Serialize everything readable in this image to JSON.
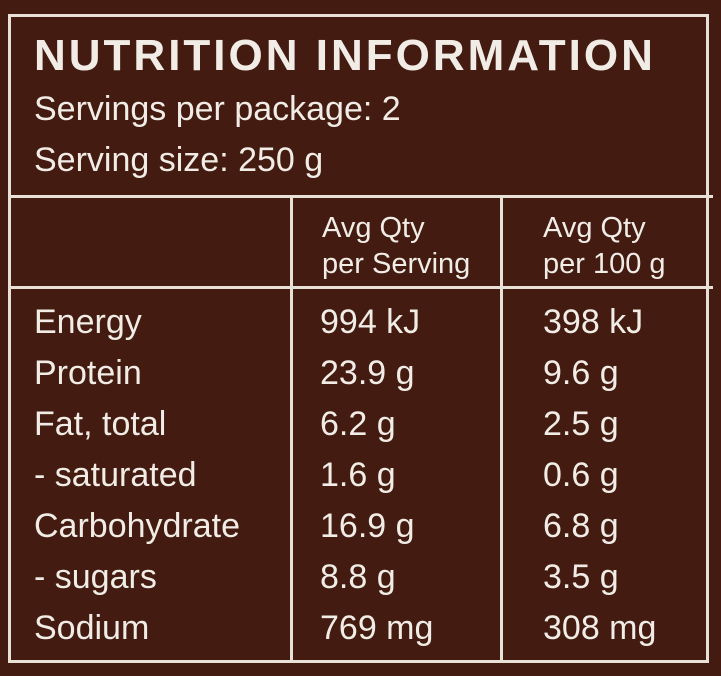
{
  "panel": {
    "title": "NUTRITION INFORMATION",
    "servings_per_package": "Servings per package: 2",
    "serving_size": "Serving size: 250 g",
    "colors": {
      "background": "#431b10",
      "text": "#f1ece6",
      "rules": "#e7e1d8"
    }
  },
  "table": {
    "headers": [
      {
        "line1": "",
        "line2": ""
      },
      {
        "line1": "Avg Qty",
        "line2": "per Serving"
      },
      {
        "line1": "Avg Qty",
        "line2": "per 100 g"
      }
    ],
    "rows": [
      {
        "nutrient": "Energy",
        "per_serving": "994 kJ",
        "per_100g": "398 kJ"
      },
      {
        "nutrient": "Protein",
        "per_serving": "23.9 g",
        "per_100g": "9.6 g"
      },
      {
        "nutrient": "Fat, total",
        "per_serving": "6.2 g",
        "per_100g": "2.5 g"
      },
      {
        "nutrient": "- saturated",
        "per_serving": "1.6 g",
        "per_100g": "0.6 g"
      },
      {
        "nutrient": "Carbohydrate",
        "per_serving": "16.9 g",
        "per_100g": "6.8 g"
      },
      {
        "nutrient": "- sugars",
        "per_serving": "8.8 g",
        "per_100g": "3.5 g"
      },
      {
        "nutrient": "Sodium",
        "per_serving": "769 mg",
        "per_100g": "308 mg"
      }
    ]
  }
}
